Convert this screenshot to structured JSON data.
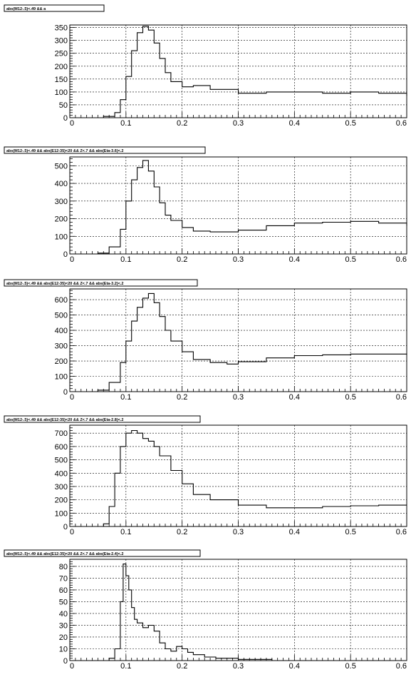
{
  "chart_data": [
    {
      "type": "line",
      "title": "abs(M12-.5)<.49 && a",
      "xlim": [
        0,
        0.6
      ],
      "ylim": [
        0,
        360
      ],
      "x_ticks": [
        "0",
        "0.1",
        "0.2",
        "0.3",
        "0.4",
        "0.5",
        "0.6"
      ],
      "y_ticks": [
        "0",
        "50",
        "100",
        "150",
        "200",
        "250",
        "300",
        "350"
      ],
      "x_tick_values": [
        0,
        0.1,
        0.2,
        0.3,
        0.4,
        0.5,
        0.6
      ],
      "y_tick_values": [
        0,
        50,
        100,
        150,
        200,
        250,
        300,
        350
      ],
      "grid": true,
      "x": [
        0.04,
        0.06,
        0.08,
        0.09,
        0.1,
        0.11,
        0.12,
        0.13,
        0.14,
        0.15,
        0.16,
        0.17,
        0.18,
        0.2,
        0.22,
        0.25,
        0.3,
        0.35,
        0.4,
        0.45,
        0.5,
        0.55,
        0.6
      ],
      "y": [
        0,
        5,
        20,
        70,
        160,
        260,
        330,
        355,
        340,
        290,
        230,
        175,
        140,
        120,
        125,
        110,
        95,
        100,
        100,
        95,
        100,
        95,
        85
      ]
    },
    {
      "type": "line",
      "title": "abs(M12-.5)<.49 && abs(E12-35)<20 && Z<.7 && abs(Eta-3.6)<.2",
      "xlim": [
        0,
        0.6
      ],
      "ylim": [
        0,
        550
      ],
      "x_ticks": [
        "0",
        "0.1",
        "0.2",
        "0.3",
        "0.4",
        "0.5",
        "0.6"
      ],
      "y_ticks": [
        "0",
        "100",
        "200",
        "300",
        "400",
        "500"
      ],
      "x_tick_values": [
        0,
        0.1,
        0.2,
        0.3,
        0.4,
        0.5,
        0.6
      ],
      "y_tick_values": [
        0,
        100,
        200,
        300,
        400,
        500
      ],
      "grid": true,
      "x": [
        0.03,
        0.05,
        0.07,
        0.09,
        0.1,
        0.11,
        0.12,
        0.13,
        0.14,
        0.15,
        0.16,
        0.17,
        0.18,
        0.2,
        0.22,
        0.25,
        0.3,
        0.35,
        0.4,
        0.45,
        0.5,
        0.55,
        0.6
      ],
      "y": [
        0,
        5,
        40,
        140,
        300,
        420,
        490,
        530,
        470,
        380,
        290,
        220,
        190,
        150,
        130,
        125,
        135,
        160,
        175,
        180,
        185,
        175,
        160
      ]
    },
    {
      "type": "line",
      "title": "abs(M12-.5)<.49 && abs(E12-35)<20 && Z<.7 && abs(Eta-3.2)<.2",
      "xlim": [
        0,
        0.6
      ],
      "ylim": [
        0,
        670
      ],
      "x_ticks": [
        "0",
        "0.1",
        "0.2",
        "0.3",
        "0.4",
        "0.5",
        "0.6"
      ],
      "y_ticks": [
        "0",
        "100",
        "200",
        "300",
        "400",
        "500",
        "600"
      ],
      "x_tick_values": [
        0,
        0.1,
        0.2,
        0.3,
        0.4,
        0.5,
        0.6
      ],
      "y_tick_values": [
        0,
        100,
        200,
        300,
        400,
        500,
        600
      ],
      "grid": true,
      "x": [
        0.03,
        0.05,
        0.07,
        0.09,
        0.1,
        0.11,
        0.12,
        0.13,
        0.14,
        0.15,
        0.16,
        0.17,
        0.18,
        0.2,
        0.22,
        0.25,
        0.28,
        0.3,
        0.35,
        0.4,
        0.45,
        0.5,
        0.55,
        0.6
      ],
      "y": [
        0,
        10,
        60,
        190,
        330,
        460,
        550,
        610,
        640,
        580,
        490,
        400,
        330,
        260,
        210,
        190,
        180,
        195,
        220,
        235,
        240,
        245,
        245,
        240
      ]
    },
    {
      "type": "line",
      "title": "abs(M12-.5)<.49 && abs(E12-35)<20 && Z<.7 && abs(Eta-2.8)<.2",
      "xlim": [
        0,
        0.6
      ],
      "ylim": [
        0,
        760
      ],
      "x_ticks": [
        "0",
        "0.1",
        "0.2",
        "0.3",
        "0.4",
        "0.5",
        "0.6"
      ],
      "y_ticks": [
        "0",
        "100",
        "200",
        "300",
        "400",
        "500",
        "600",
        "700"
      ],
      "x_tick_values": [
        0,
        0.1,
        0.2,
        0.3,
        0.4,
        0.5,
        0.6
      ],
      "y_tick_values": [
        0,
        100,
        200,
        300,
        400,
        500,
        600,
        700
      ],
      "grid": true,
      "x": [
        0.04,
        0.06,
        0.07,
        0.08,
        0.09,
        0.1,
        0.11,
        0.12,
        0.13,
        0.14,
        0.15,
        0.16,
        0.18,
        0.2,
        0.22,
        0.25,
        0.3,
        0.35,
        0.4,
        0.45,
        0.5,
        0.55,
        0.6
      ],
      "y": [
        0,
        20,
        150,
        400,
        600,
        700,
        720,
        700,
        660,
        640,
        600,
        530,
        420,
        320,
        240,
        200,
        160,
        140,
        140,
        150,
        155,
        160,
        160
      ]
    },
    {
      "type": "line",
      "title": "abs(M12-.5)<.49 && abs(E12-35)<20 && Z<.7 && abs(Eta-2.4)<.2",
      "xlim": [
        0,
        0.6
      ],
      "ylim": [
        0,
        86
      ],
      "x_ticks": [
        "0",
        "0.1",
        "0.2",
        "0.3",
        "0.4",
        "0.5",
        "0.6"
      ],
      "y_ticks": [
        "0",
        "10",
        "20",
        "30",
        "40",
        "50",
        "60",
        "70",
        "80"
      ],
      "x_tick_values": [
        0,
        0.1,
        0.2,
        0.3,
        0.4,
        0.5,
        0.6
      ],
      "y_tick_values": [
        0,
        10,
        20,
        30,
        40,
        50,
        60,
        70,
        80
      ],
      "grid": true,
      "x": [
        0.06,
        0.07,
        0.08,
        0.09,
        0.095,
        0.1,
        0.105,
        0.11,
        0.115,
        0.12,
        0.13,
        0.14,
        0.15,
        0.16,
        0.17,
        0.18,
        0.19,
        0.2,
        0.21,
        0.22,
        0.24,
        0.26,
        0.28,
        0.3,
        0.33,
        0.36,
        0.4
      ],
      "y": [
        0,
        2,
        10,
        50,
        82,
        72,
        60,
        45,
        35,
        32,
        28,
        30,
        25,
        15,
        10,
        8,
        12,
        10,
        7,
        5,
        3,
        2,
        2,
        1,
        1,
        0,
        0
      ]
    }
  ]
}
